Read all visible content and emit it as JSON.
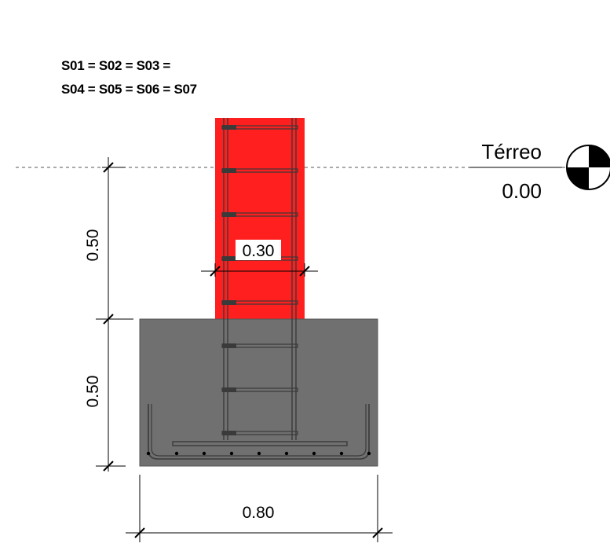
{
  "title": {
    "line1": "S01 = S02 = S03 =",
    "line2": "S04 = S05 = S06 = S07"
  },
  "level": {
    "name": "Térreo",
    "elevation": "0.00"
  },
  "dimensions": {
    "column_width": "0.30",
    "column_height": "0.50",
    "footing_height": "0.50",
    "footing_width": "0.80"
  },
  "colors": {
    "column": "#ff1f1f",
    "footing": "#707070",
    "rebar": "#3a3a3a",
    "line": "#000000"
  }
}
